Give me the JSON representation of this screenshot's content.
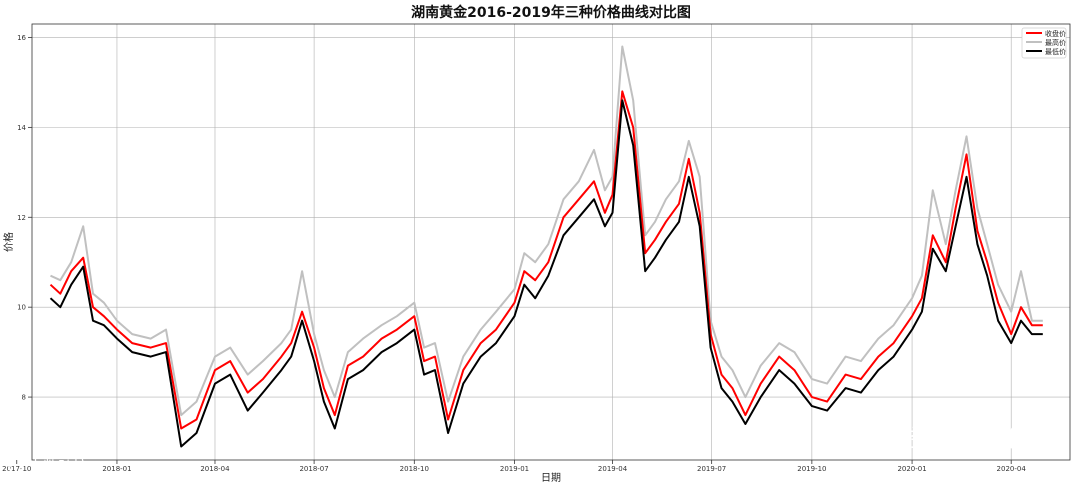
{
  "chart_data": {
    "type": "line",
    "title": "湖南黄金2016-2019年三种价格曲线对比图",
    "xlabel": "日期",
    "ylabel": "价格",
    "grid": true,
    "legend_position": "top-right",
    "ylim": [
      6.6,
      16.3
    ],
    "xlim": [
      "2017-10-15",
      "2020-05-25"
    ],
    "y_ticks": [
      8,
      10,
      12,
      14,
      16
    ],
    "x_ticks": [
      {
        "date": "2017-10-01",
        "label": "2017-10"
      },
      {
        "date": "2018-01-01",
        "label": "2018-01"
      },
      {
        "date": "2018-04-01",
        "label": "2018-04"
      },
      {
        "date": "2018-07-01",
        "label": "2018-07"
      },
      {
        "date": "2018-10-01",
        "label": "2018-10"
      },
      {
        "date": "2019-01-01",
        "label": "2019-01"
      },
      {
        "date": "2019-04-01",
        "label": "2019-04"
      },
      {
        "date": "2019-07-01",
        "label": "2019-07"
      },
      {
        "date": "2019-10-01",
        "label": "2019-10"
      },
      {
        "date": "2020-01-01",
        "label": "2020-01"
      },
      {
        "date": "2020-04-01",
        "label": "2020-04"
      }
    ],
    "x": [
      "2017-11-01",
      "2017-11-10",
      "2017-11-20",
      "2017-12-01",
      "2017-12-10",
      "2017-12-20",
      "2018-01-01",
      "2018-01-15",
      "2018-02-01",
      "2018-02-15",
      "2018-03-01",
      "2018-03-15",
      "2018-04-01",
      "2018-04-15",
      "2018-05-01",
      "2018-05-15",
      "2018-06-01",
      "2018-06-10",
      "2018-06-20",
      "2018-07-01",
      "2018-07-10",
      "2018-07-20",
      "2018-08-01",
      "2018-08-15",
      "2018-09-01",
      "2018-09-15",
      "2018-10-01",
      "2018-10-10",
      "2018-10-20",
      "2018-11-01",
      "2018-11-15",
      "2018-12-01",
      "2018-12-15",
      "2019-01-01",
      "2019-01-10",
      "2019-01-20",
      "2019-02-01",
      "2019-02-15",
      "2019-03-01",
      "2019-03-15",
      "2019-03-25",
      "2019-04-01",
      "2019-04-10",
      "2019-04-20",
      "2019-05-01",
      "2019-05-10",
      "2019-05-20",
      "2019-06-01",
      "2019-06-10",
      "2019-06-20",
      "2019-06-30",
      "2019-07-10",
      "2019-07-20",
      "2019-08-01",
      "2019-08-15",
      "2019-09-01",
      "2019-09-15",
      "2019-10-01",
      "2019-10-15",
      "2019-11-01",
      "2019-11-15",
      "2019-12-01",
      "2019-12-15",
      "2020-01-01",
      "2020-01-10",
      "2020-01-20",
      "2020-02-01",
      "2020-02-10",
      "2020-02-20",
      "2020-03-01",
      "2020-03-10",
      "2020-03-20",
      "2020-04-01",
      "2020-04-10",
      "2020-04-20",
      "2020-04-30"
    ],
    "series": [
      {
        "name": "收盘价",
        "color": "#ff0000",
        "values": [
          10.5,
          10.3,
          10.8,
          11.1,
          10.0,
          9.8,
          9.5,
          9.2,
          9.1,
          9.2,
          7.3,
          7.5,
          8.6,
          8.8,
          8.1,
          8.4,
          8.9,
          9.2,
          9.9,
          9.1,
          8.2,
          7.6,
          8.7,
          8.9,
          9.3,
          9.5,
          9.8,
          8.8,
          8.9,
          7.5,
          8.6,
          9.2,
          9.5,
          10.1,
          10.8,
          10.6,
          11.0,
          12.0,
          12.4,
          12.8,
          12.1,
          12.5,
          14.8,
          14.0,
          11.2,
          11.5,
          11.9,
          12.3,
          13.3,
          12.1,
          9.4,
          8.5,
          8.2,
          7.6,
          8.3,
          8.9,
          8.6,
          8.0,
          7.9,
          8.5,
          8.4,
          8.9,
          9.2,
          9.8,
          10.2,
          11.6,
          11.0,
          12.2,
          13.4,
          11.7,
          11.0,
          10.1,
          9.4,
          10.0,
          9.6,
          9.6
        ]
      },
      {
        "name": "最高价",
        "color": "#c0c0c0",
        "values": [
          10.7,
          10.6,
          11.0,
          11.8,
          10.3,
          10.1,
          9.7,
          9.4,
          9.3,
          9.5,
          7.6,
          7.9,
          8.9,
          9.1,
          8.5,
          8.8,
          9.2,
          9.5,
          10.8,
          9.4,
          8.6,
          8.0,
          9.0,
          9.3,
          9.6,
          9.8,
          10.1,
          9.1,
          9.2,
          7.9,
          8.9,
          9.5,
          9.9,
          10.4,
          11.2,
          11.0,
          11.4,
          12.4,
          12.8,
          13.5,
          12.6,
          12.9,
          15.8,
          14.6,
          11.6,
          11.9,
          12.4,
          12.8,
          13.7,
          12.9,
          9.7,
          8.9,
          8.6,
          8.0,
          8.7,
          9.2,
          9.0,
          8.4,
          8.3,
          8.9,
          8.8,
          9.3,
          9.6,
          10.2,
          10.7,
          12.6,
          11.4,
          12.6,
          13.8,
          12.2,
          11.4,
          10.5,
          9.9,
          10.8,
          9.7,
          9.7
        ]
      },
      {
        "name": "最低价",
        "color": "#000000",
        "values": [
          10.2,
          10.0,
          10.5,
          10.9,
          9.7,
          9.6,
          9.3,
          9.0,
          8.9,
          9.0,
          6.9,
          7.2,
          8.3,
          8.5,
          7.7,
          8.1,
          8.6,
          8.9,
          9.7,
          8.8,
          7.9,
          7.3,
          8.4,
          8.6,
          9.0,
          9.2,
          9.5,
          8.5,
          8.6,
          7.2,
          8.3,
          8.9,
          9.2,
          9.8,
          10.5,
          10.2,
          10.7,
          11.6,
          12.0,
          12.4,
          11.8,
          12.1,
          14.6,
          13.6,
          10.8,
          11.1,
          11.5,
          11.9,
          12.9,
          11.8,
          9.1,
          8.2,
          7.9,
          7.4,
          8.0,
          8.6,
          8.3,
          7.8,
          7.7,
          8.2,
          8.1,
          8.6,
          8.9,
          9.5,
          9.9,
          11.3,
          10.8,
          11.8,
          12.9,
          11.4,
          10.7,
          9.7,
          9.2,
          9.7,
          9.4,
          9.4
        ]
      }
    ]
  },
  "watermark": {
    "left_text": "大数跨境",
    "right_text": "数据皮皮侠"
  }
}
